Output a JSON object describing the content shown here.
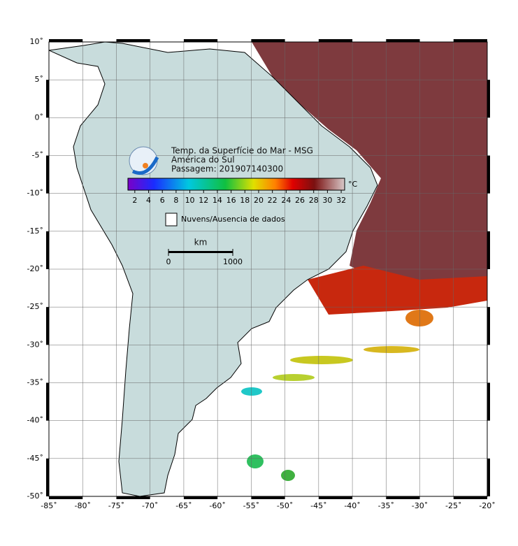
{
  "map": {
    "title_lines": [
      "Temp. da Superfície do Mar - MSG",
      "América do Sul",
      "Passagem: 201907140300"
    ],
    "colorbar": {
      "unit": "°C",
      "lim": [
        1,
        32.5
      ],
      "ticks": [
        2,
        4,
        6,
        8,
        10,
        12,
        14,
        16,
        18,
        20,
        22,
        24,
        26,
        28,
        30,
        32
      ]
    },
    "legend": "Nuvens/Ausencia de dados",
    "scale": {
      "title": "km",
      "lim": [
        0,
        1000
      ],
      "ticks": [
        0,
        1000
      ]
    },
    "lonlim": [
      -85,
      -20
    ],
    "latlim": [
      -50,
      10
    ],
    "lon_ticks": [
      {
        "value": -85,
        "label": "-85˚"
      },
      {
        "value": -80,
        "label": "-80˚"
      },
      {
        "value": -75,
        "label": "-75˚"
      },
      {
        "value": -70,
        "label": "-70˚"
      },
      {
        "value": -65,
        "label": "-65˚"
      },
      {
        "value": -60,
        "label": "-60˚"
      },
      {
        "value": -55,
        "label": "-55˚"
      },
      {
        "value": -50,
        "label": "-50˚"
      },
      {
        "value": -45,
        "label": "-45˚"
      },
      {
        "value": -40,
        "label": "-40˚"
      },
      {
        "value": -35,
        "label": "-35˚"
      },
      {
        "value": -30,
        "label": "-30˚"
      },
      {
        "value": -25,
        "label": "-25˚"
      },
      {
        "value": -20,
        "label": "-20˚"
      }
    ],
    "lat_ticks": [
      {
        "value": 10,
        "label": "10˚"
      },
      {
        "value": 5,
        "label": "5˚"
      },
      {
        "value": 0,
        "label": "0˚"
      },
      {
        "value": -5,
        "label": "-5˚"
      },
      {
        "value": -10,
        "label": "-10˚"
      },
      {
        "value": -15,
        "label": "-15˚"
      },
      {
        "value": -20,
        "label": "-20˚"
      },
      {
        "value": -25,
        "label": "-25˚"
      },
      {
        "value": -30,
        "label": "-30˚"
      },
      {
        "value": -35,
        "label": "-35˚"
      },
      {
        "value": -40,
        "label": "-40˚"
      },
      {
        "value": -45,
        "label": "-45˚"
      },
      {
        "value": -50,
        "label": "-50˚"
      }
    ]
  }
}
